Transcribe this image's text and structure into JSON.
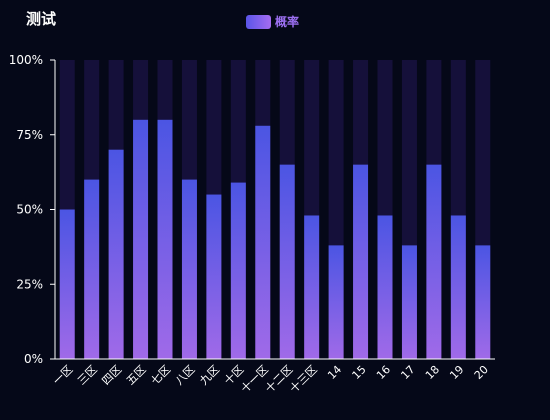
{
  "title": "测试",
  "legend": {
    "label": "概率"
  },
  "colors": {
    "background": "#050818",
    "bar_track": "#15103a",
    "bar_top": "#4b55e3",
    "bar_bottom": "#a06ae8",
    "axis": "#ffffff"
  },
  "chart_data": {
    "type": "bar",
    "title": "测试",
    "xlabel": "",
    "ylabel": "",
    "ylim": [
      0,
      100
    ],
    "yticks": [
      "0%",
      "25%",
      "50%",
      "75%",
      "100%"
    ],
    "ytick_values": [
      0,
      25,
      50,
      75,
      100
    ],
    "categories": [
      "一区",
      "三区",
      "四区",
      "五区",
      "七区",
      "八区",
      "九区",
      "十区",
      "十一区",
      "十二区",
      "十三区",
      "14",
      "15",
      "16",
      "17",
      "18",
      "19",
      "20"
    ],
    "series": [
      {
        "name": "概率",
        "values": [
          50,
          60,
          70,
          80,
          80,
          60,
          55,
          59,
          78,
          65,
          48,
          38,
          65,
          48,
          38,
          65,
          48,
          38
        ]
      }
    ],
    "background_bars": true,
    "grid": false,
    "legend_position": "top-center"
  }
}
